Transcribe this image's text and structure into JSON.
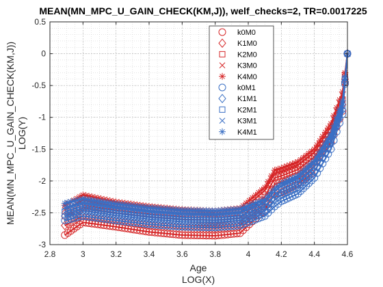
{
  "chart_data": {
    "type": "line",
    "title": "MEAN(MN_MPC_U_GAIN_CHECK(KM,J)), welf_checks=2, TR=0.0017225",
    "xlabel": "Age",
    "xlabel2": "LOG(X)",
    "ylabel": "MEAN(MN_MPC_U_GAIN_CHECK(KM,J))",
    "ylabel2": "LOG(Y)",
    "xlim": [
      2.8,
      4.6
    ],
    "ylim": [
      -3,
      0.5
    ],
    "xticks": [
      2.8,
      3,
      3.2,
      3.4,
      3.6,
      3.8,
      4,
      4.2,
      4.4,
      4.6
    ],
    "xtick_labels": [
      "2.8",
      "3",
      "3.2",
      "3.4",
      "3.6",
      "3.8",
      "4",
      "4.2",
      "4.4",
      "4.6"
    ],
    "yticks": [
      -3,
      -2.5,
      -2,
      -1.5,
      -1,
      -0.5,
      0,
      0.5
    ],
    "ytick_labels": [
      "-3",
      "-2.5",
      "-2",
      "-1.5",
      "-1",
      "-0.5",
      "0",
      "0.5"
    ],
    "grid": true,
    "minor_grid": true,
    "legend_position": "top-right",
    "colors": {
      "M0": "#d62728",
      "M1": "#3a6fc4"
    },
    "series": [
      {
        "name": "k0M0",
        "marker": "circle",
        "color": "#d62728",
        "x": [
          2.89,
          3.0,
          3.2,
          3.4,
          3.6,
          3.8,
          3.95,
          4.1,
          4.16,
          4.2,
          4.3,
          4.4,
          4.5,
          4.57,
          4.6
        ],
        "y": [
          -2.85,
          -2.65,
          -2.72,
          -2.8,
          -2.85,
          -2.86,
          -2.82,
          -2.45,
          -2.2,
          -2.18,
          -2.05,
          -1.85,
          -1.4,
          -0.9,
          0.0
        ]
      },
      {
        "name": "K1M0",
        "marker": "diamond",
        "color": "#d62728",
        "x": [
          2.89,
          3.0,
          3.2,
          3.4,
          3.6,
          3.8,
          3.95,
          4.1,
          4.16,
          4.2,
          4.3,
          4.4,
          4.5,
          4.57,
          4.6
        ],
        "y": [
          -2.7,
          -2.55,
          -2.62,
          -2.68,
          -2.72,
          -2.74,
          -2.7,
          -2.35,
          -2.05,
          -2.02,
          -1.92,
          -1.72,
          -1.3,
          -0.8,
          0.0
        ]
      },
      {
        "name": "K2M0",
        "marker": "square",
        "color": "#d62728",
        "x": [
          2.89,
          3.0,
          3.2,
          3.4,
          3.6,
          3.8,
          3.95,
          4.1,
          4.16,
          4.2,
          4.3,
          4.4,
          4.5,
          4.57,
          4.6
        ],
        "y": [
          -2.55,
          -2.42,
          -2.5,
          -2.56,
          -2.6,
          -2.62,
          -2.58,
          -2.25,
          -1.95,
          -1.92,
          -1.82,
          -1.62,
          -1.22,
          -0.72,
          0.0
        ]
      },
      {
        "name": "K3M0",
        "marker": "x",
        "color": "#d62728",
        "x": [
          2.89,
          3.0,
          3.2,
          3.4,
          3.6,
          3.8,
          3.95,
          4.1,
          4.16,
          4.2,
          4.3,
          4.4,
          4.5,
          4.57,
          4.6
        ],
        "y": [
          -2.45,
          -2.3,
          -2.4,
          -2.47,
          -2.51,
          -2.53,
          -2.49,
          -2.15,
          -1.88,
          -1.85,
          -1.75,
          -1.55,
          -1.15,
          -0.65,
          0.0
        ]
      },
      {
        "name": "K4M0",
        "marker": "asterisk",
        "color": "#d62728",
        "x": [
          2.89,
          3.0,
          3.2,
          3.4,
          3.6,
          3.8,
          3.95,
          4.1,
          4.16,
          4.2,
          4.3,
          4.4,
          4.5,
          4.57,
          4.6
        ],
        "y": [
          -2.38,
          -2.22,
          -2.33,
          -2.4,
          -2.45,
          -2.47,
          -2.43,
          -2.1,
          -1.83,
          -1.8,
          -1.7,
          -1.5,
          -1.1,
          -0.6,
          0.0
        ]
      },
      {
        "name": "k0M1",
        "marker": "circle",
        "color": "#3a6fc4",
        "x": [
          2.89,
          3.0,
          3.2,
          3.4,
          3.6,
          3.8,
          3.95,
          4.1,
          4.16,
          4.2,
          4.3,
          4.4,
          4.5,
          4.57,
          4.6
        ],
        "y": [
          -2.62,
          -2.55,
          -2.62,
          -2.68,
          -2.72,
          -2.73,
          -2.7,
          -2.55,
          -2.4,
          -2.32,
          -2.2,
          -1.95,
          -1.5,
          -0.95,
          0.0
        ]
      },
      {
        "name": "K1M1",
        "marker": "diamond",
        "color": "#3a6fc4",
        "x": [
          2.89,
          3.0,
          3.2,
          3.4,
          3.6,
          3.8,
          3.95,
          4.1,
          4.16,
          4.2,
          4.3,
          4.4,
          4.5,
          4.57,
          4.6
        ],
        "y": [
          -2.55,
          -2.47,
          -2.54,
          -2.6,
          -2.64,
          -2.65,
          -2.62,
          -2.47,
          -2.3,
          -2.22,
          -2.1,
          -1.85,
          -1.42,
          -0.88,
          0.0
        ]
      },
      {
        "name": "K2M1",
        "marker": "square",
        "color": "#3a6fc4",
        "x": [
          2.89,
          3.0,
          3.2,
          3.4,
          3.6,
          3.8,
          3.95,
          4.1,
          4.16,
          4.2,
          4.3,
          4.4,
          4.5,
          4.57,
          4.6
        ],
        "y": [
          -2.48,
          -2.4,
          -2.47,
          -2.53,
          -2.57,
          -2.58,
          -2.55,
          -2.4,
          -2.22,
          -2.14,
          -2.02,
          -1.78,
          -1.35,
          -0.82,
          0.0
        ]
      },
      {
        "name": "K3M1",
        "marker": "x",
        "color": "#3a6fc4",
        "x": [
          2.89,
          3.0,
          3.2,
          3.4,
          3.6,
          3.8,
          3.95,
          4.1,
          4.16,
          4.2,
          4.3,
          4.4,
          4.5,
          4.57,
          4.6
        ],
        "y": [
          -2.42,
          -2.34,
          -2.41,
          -2.47,
          -2.51,
          -2.52,
          -2.49,
          -2.34,
          -2.16,
          -2.08,
          -1.96,
          -1.72,
          -1.3,
          -0.78,
          0.0
        ]
      },
      {
        "name": "K4M1",
        "marker": "asterisk",
        "color": "#3a6fc4",
        "x": [
          2.89,
          3.0,
          3.2,
          3.4,
          3.6,
          3.8,
          3.95,
          4.1,
          4.16,
          4.2,
          4.3,
          4.4,
          4.5,
          4.57,
          4.6
        ],
        "y": [
          -2.35,
          -2.28,
          -2.36,
          -2.42,
          -2.46,
          -2.47,
          -2.44,
          -2.29,
          -2.12,
          -2.04,
          -1.92,
          -1.68,
          -1.26,
          -0.74,
          0.0
        ]
      }
    ]
  }
}
